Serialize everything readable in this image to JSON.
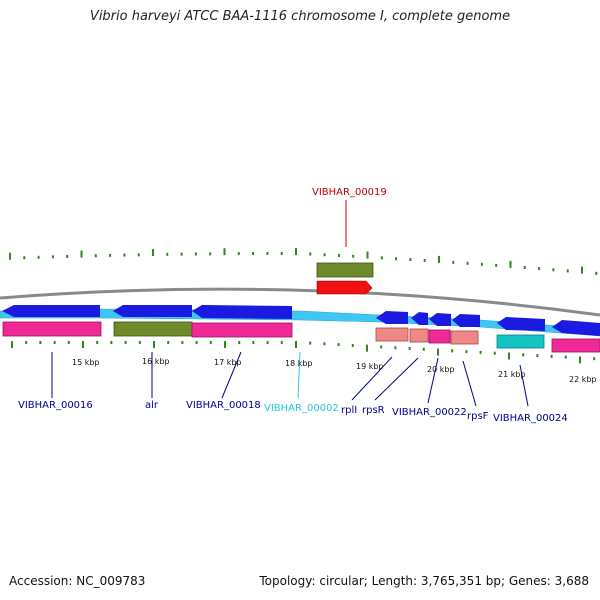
{
  "title": "Vibrio harveyi ATCC BAA-1116 chromosome I, complete genome",
  "accession": "Accession: NC_009783",
  "stats": "Topology: circular; Length: 3,765,351 bp; Genes: 3,688",
  "colors": {
    "cds": "#1a1ae0",
    "backbone": "#3fc6f2",
    "pink": "#ef2a96",
    "olive": "#6e8a2a",
    "salmon": "#f08888",
    "teal": "#12c4c4",
    "red": "#f01010",
    "tick": "#2a8a1a",
    "label_blue": "#000090",
    "label_cyan": "#2ac6e0",
    "label_red": "#c00000"
  },
  "scale": {
    "labels": [
      {
        "text": "15 kbp"
      },
      {
        "text": "16 kbp"
      },
      {
        "text": "17 kbp"
      },
      {
        "text": "18 kbp"
      },
      {
        "text": "19 kbp"
      },
      {
        "text": "20 kbp"
      },
      {
        "text": "21 kbp"
      },
      {
        "text": "22 kbp"
      }
    ]
  },
  "genes": [
    {
      "label": "VIBHAR_00016",
      "color": "label_blue"
    },
    {
      "label": "alr",
      "color": "label_blue"
    },
    {
      "label": "VIBHAR_00018",
      "color": "label_blue"
    },
    {
      "label": "VIBHAR_00002",
      "color": "label_cyan"
    },
    {
      "label": "rplI",
      "color": "label_blue"
    },
    {
      "label": "rpsR",
      "color": "label_blue"
    },
    {
      "label": "VIBHAR_00022",
      "color": "label_blue"
    },
    {
      "label": "rpsF",
      "color": "label_blue"
    },
    {
      "label": "VIBHAR_00024",
      "color": "label_blue"
    },
    {
      "label": "VIBHAR_00019",
      "color": "label_red"
    }
  ]
}
